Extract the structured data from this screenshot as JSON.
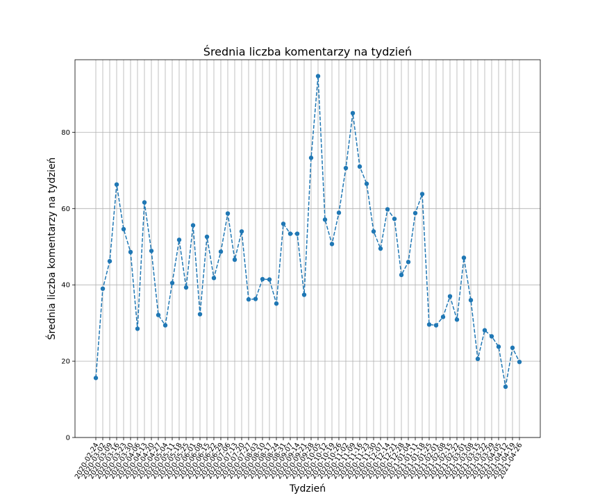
{
  "chart_data": {
    "type": "line",
    "title": "Średnia liczba komentarzy na tydzień",
    "xlabel": "Tydzień",
    "ylabel": "Średnia liczba komentarzy na tydzień",
    "ylim": [
      0,
      99
    ],
    "yticks": [
      0,
      20,
      40,
      60,
      80
    ],
    "grid": true,
    "line_style": "dashed",
    "marker": "circle",
    "color": "#1f77b4",
    "x": [
      "2020-02-24",
      "2020-03-02",
      "2020-03-09",
      "2020-03-16",
      "2020-03-23",
      "2020-03-30",
      "2020-04-06",
      "2020-04-13",
      "2020-04-20",
      "2020-04-27",
      "2020-05-04",
      "2020-05-11",
      "2020-05-18",
      "2020-05-25",
      "2020-06-01",
      "2020-06-08",
      "2020-06-15",
      "2020-06-22",
      "2020-06-29",
      "2020-07-06",
      "2020-07-13",
      "2020-07-20",
      "2020-07-27",
      "2020-08-03",
      "2020-08-10",
      "2020-08-17",
      "2020-08-24",
      "2020-08-31",
      "2020-09-07",
      "2020-09-14",
      "2020-09-21",
      "2020-09-28",
      "2020-10-05",
      "2020-10-12",
      "2020-10-19",
      "2020-10-26",
      "2020-11-02",
      "2020-11-09",
      "2020-11-16",
      "2020-11-23",
      "2020-11-30",
      "2020-12-07",
      "2020-12-14",
      "2020-12-21",
      "2020-12-28",
      "2021-01-04",
      "2021-01-11",
      "2021-01-18",
      "2021-01-25",
      "2021-02-01",
      "2021-02-08",
      "2021-02-15",
      "2021-02-22",
      "2021-03-01",
      "2021-03-08",
      "2021-03-15",
      "2021-03-22",
      "2021-03-29",
      "2021-04-05",
      "2021-04-12",
      "2021-04-19",
      "2021-04-26"
    ],
    "y": [
      15.6,
      39.0,
      46.2,
      66.3,
      54.6,
      48.6,
      28.5,
      61.6,
      48.9,
      32.1,
      29.4,
      40.5,
      51.8,
      39.3,
      55.6,
      32.3,
      52.6,
      41.8,
      48.7,
      58.7,
      46.6,
      54.0,
      36.2,
      36.3,
      41.5,
      41.4,
      35.1,
      56.0,
      53.4,
      53.4,
      37.4,
      73.3,
      94.7,
      57.1,
      50.7,
      58.9,
      70.6,
      85.0,
      71.0,
      66.5,
      54.0,
      49.5,
      59.8,
      57.3,
      42.6,
      46.0,
      58.8,
      63.8,
      29.6,
      29.4,
      31.6,
      37.0,
      30.9,
      47.1,
      36.0,
      20.6,
      28.1,
      26.5,
      23.8,
      13.3,
      23.5,
      19.8
    ]
  }
}
